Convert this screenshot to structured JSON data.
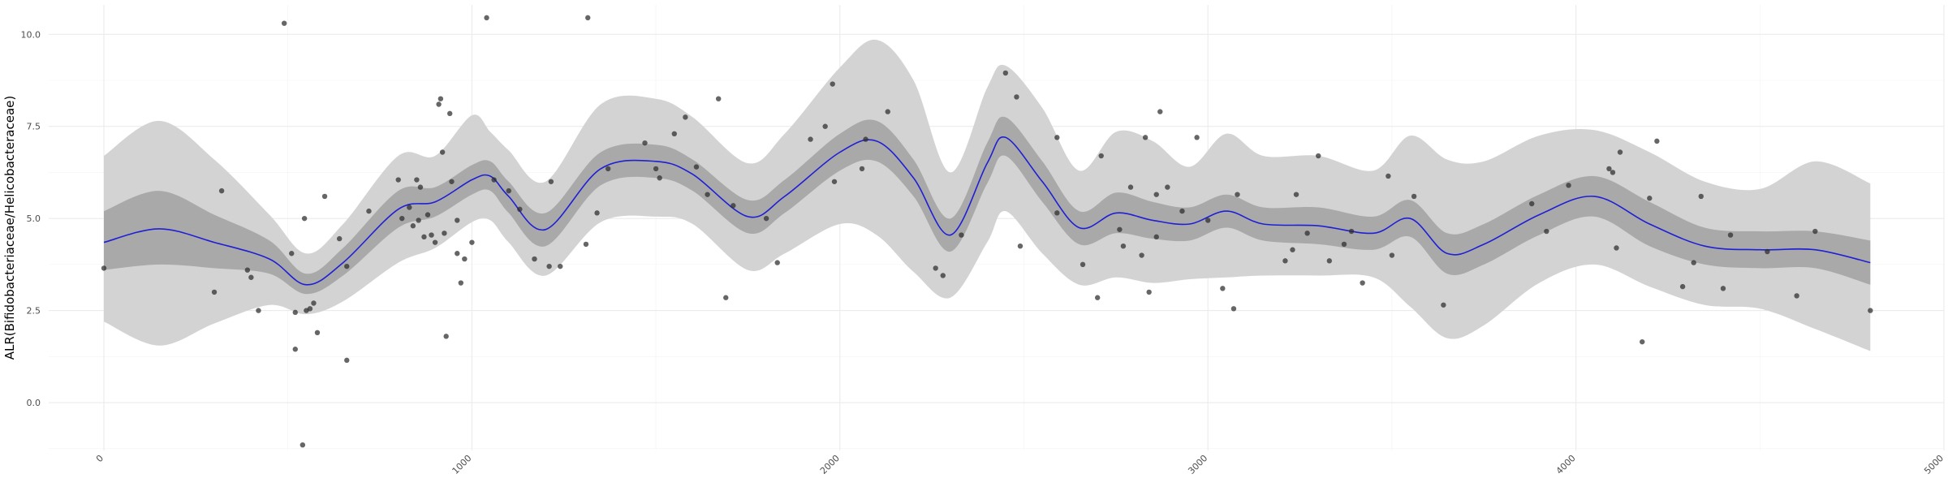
{
  "chart_data": {
    "type": "line",
    "title": "",
    "xlabel": "",
    "ylabel": "ALR(Bifidobacteriaceae/Helicobacteraceae)",
    "xlim": [
      -150,
      5000
    ],
    "ylim": [
      -1.3,
      10.8
    ],
    "x_ticks": [
      0,
      1000,
      2000,
      3000,
      4000,
      5000
    ],
    "x_tick_labels": [
      "0",
      "1000",
      "2000",
      "3000",
      "4000",
      "5000"
    ],
    "y_ticks": [
      0.0,
      2.5,
      5.0,
      7.5,
      10.0
    ],
    "y_tick_labels": [
      "0.0",
      "2.5",
      "5.0",
      "7.5",
      "10.0"
    ],
    "grid": true,
    "legend": "none",
    "colors": {
      "line": "#1f1fd6",
      "inner_band": "#a9a9a9",
      "outer_band": "#d3d3d3",
      "points": "#2b2b2b"
    },
    "smooth": {
      "x": [
        0,
        150,
        300,
        450,
        550,
        650,
        800,
        900,
        1000,
        1050,
        1100,
        1200,
        1350,
        1500,
        1600,
        1750,
        1850,
        2000,
        2100,
        2200,
        2300,
        2400,
        2450,
        2550,
        2650,
        2750,
        2850,
        2950,
        3050,
        3150,
        3300,
        3450,
        3550,
        3650,
        3750,
        3900,
        4050,
        4200,
        4350,
        4500,
        4650,
        4800
      ],
      "fit": [
        4.35,
        4.72,
        4.35,
        3.9,
        3.2,
        3.8,
        5.25,
        5.45,
        6.05,
        6.15,
        5.6,
        4.7,
        6.35,
        6.55,
        6.2,
        5.05,
        5.6,
        6.8,
        7.1,
        6.1,
        4.55,
        6.5,
        7.2,
        6.0,
        4.75,
        5.15,
        4.95,
        4.85,
        5.2,
        4.85,
        4.8,
        4.6,
        5.0,
        4.05,
        4.3,
        5.1,
        5.6,
        4.85,
        4.25,
        4.15,
        4.15,
        3.8
      ],
      "inner_lower": [
        3.6,
        3.75,
        3.65,
        3.5,
        2.95,
        3.45,
        4.75,
        5.05,
        5.65,
        5.75,
        5.15,
        4.25,
        5.9,
        6.1,
        5.75,
        4.6,
        5.15,
        6.3,
        6.55,
        5.6,
        4.1,
        5.95,
        6.7,
        5.45,
        4.3,
        4.6,
        4.45,
        4.4,
        4.75,
        4.4,
        4.3,
        4.15,
        4.5,
        3.5,
        3.75,
        4.55,
        5.05,
        4.25,
        3.75,
        3.65,
        3.65,
        3.2
      ],
      "inner_upper": [
        5.2,
        5.75,
        5.1,
        4.4,
        3.5,
        4.2,
        5.75,
        5.85,
        6.45,
        6.55,
        6.0,
        5.15,
        6.8,
        7.0,
        6.6,
        5.5,
        6.05,
        7.3,
        7.65,
        6.6,
        5.0,
        7.05,
        7.75,
        6.55,
        5.2,
        5.7,
        5.45,
        5.3,
        5.65,
        5.3,
        5.3,
        5.05,
        5.5,
        4.6,
        4.85,
        5.65,
        6.15,
        5.45,
        4.75,
        4.65,
        4.65,
        4.4
      ],
      "outer_lower": [
        2.2,
        1.55,
        2.15,
        2.65,
        2.4,
        2.75,
        3.8,
        4.2,
        4.9,
        4.95,
        4.35,
        3.45,
        4.9,
        5.05,
        4.85,
        3.6,
        4.05,
        4.85,
        4.55,
        3.55,
        2.85,
        4.35,
        5.2,
        4.05,
        3.2,
        3.4,
        3.25,
        3.35,
        3.4,
        3.45,
        3.45,
        3.4,
        2.6,
        1.75,
        2.1,
        3.25,
        3.75,
        3.15,
        2.65,
        2.55,
        2.0,
        1.4
      ],
      "outer_upper": [
        6.7,
        7.65,
        6.6,
        5.1,
        4.05,
        4.85,
        6.7,
        6.7,
        7.8,
        7.35,
        6.85,
        6.0,
        8.1,
        8.25,
        7.75,
        6.5,
        7.3,
        9.1,
        9.85,
        8.75,
        6.25,
        8.55,
        9.15,
        8.0,
        6.3,
        7.35,
        7.1,
        6.4,
        7.3,
        6.7,
        6.7,
        6.3,
        7.25,
        6.6,
        6.55,
        7.25,
        7.4,
        6.8,
        6.0,
        5.8,
        6.55,
        5.95
      ]
    },
    "points": [
      [
        0,
        3.65
      ],
      [
        300,
        3.0
      ],
      [
        320,
        5.75
      ],
      [
        390,
        3.6
      ],
      [
        400,
        3.4
      ],
      [
        420,
        2.5
      ],
      [
        490,
        10.3
      ],
      [
        510,
        4.05
      ],
      [
        520,
        1.45
      ],
      [
        520,
        2.45
      ],
      [
        540,
        -1.15
      ],
      [
        545,
        5.0
      ],
      [
        550,
        2.5
      ],
      [
        560,
        2.55
      ],
      [
        570,
        2.7
      ],
      [
        580,
        1.9
      ],
      [
        600,
        5.6
      ],
      [
        640,
        4.45
      ],
      [
        660,
        1.15
      ],
      [
        660,
        3.7
      ],
      [
        720,
        5.2
      ],
      [
        800,
        6.05
      ],
      [
        810,
        5.0
      ],
      [
        830,
        5.3
      ],
      [
        840,
        4.8
      ],
      [
        850,
        6.05
      ],
      [
        855,
        4.95
      ],
      [
        860,
        5.85
      ],
      [
        870,
        4.5
      ],
      [
        880,
        5.1
      ],
      [
        890,
        4.55
      ],
      [
        900,
        4.35
      ],
      [
        910,
        8.1
      ],
      [
        915,
        8.25
      ],
      [
        920,
        6.8
      ],
      [
        925,
        4.6
      ],
      [
        930,
        1.8
      ],
      [
        940,
        7.85
      ],
      [
        945,
        6.0
      ],
      [
        960,
        4.95
      ],
      [
        960,
        4.05
      ],
      [
        970,
        3.25
      ],
      [
        980,
        3.9
      ],
      [
        1000,
        4.35
      ],
      [
        1040,
        10.45
      ],
      [
        1060,
        6.05
      ],
      [
        1100,
        5.75
      ],
      [
        1130,
        5.25
      ],
      [
        1170,
        3.9
      ],
      [
        1210,
        3.7
      ],
      [
        1215,
        6.0
      ],
      [
        1240,
        3.7
      ],
      [
        1310,
        4.3
      ],
      [
        1340,
        5.15
      ],
      [
        1315,
        10.45
      ],
      [
        1370,
        6.35
      ],
      [
        1470,
        7.05
      ],
      [
        1500,
        6.35
      ],
      [
        1510,
        6.1
      ],
      [
        1550,
        7.3
      ],
      [
        1580,
        7.75
      ],
      [
        1610,
        6.4
      ],
      [
        1640,
        5.65
      ],
      [
        1670,
        8.25
      ],
      [
        1690,
        2.85
      ],
      [
        1710,
        5.35
      ],
      [
        1800,
        5.0
      ],
      [
        1830,
        3.8
      ],
      [
        1920,
        7.15
      ],
      [
        1960,
        7.5
      ],
      [
        1980,
        8.65
      ],
      [
        1985,
        6.0
      ],
      [
        2060,
        6.35
      ],
      [
        2070,
        7.15
      ],
      [
        2130,
        7.9
      ],
      [
        2260,
        3.65
      ],
      [
        2280,
        3.45
      ],
      [
        2330,
        4.55
      ],
      [
        2450,
        8.95
      ],
      [
        2480,
        8.3
      ],
      [
        2490,
        4.25
      ],
      [
        2590,
        5.15
      ],
      [
        2590,
        7.2
      ],
      [
        2660,
        3.75
      ],
      [
        2700,
        2.85
      ],
      [
        2710,
        6.7
      ],
      [
        2760,
        4.7
      ],
      [
        2770,
        4.25
      ],
      [
        2790,
        5.85
      ],
      [
        2820,
        4.0
      ],
      [
        2830,
        7.2
      ],
      [
        2840,
        3.0
      ],
      [
        2860,
        4.5
      ],
      [
        2860,
        5.65
      ],
      [
        2870,
        7.9
      ],
      [
        2890,
        5.85
      ],
      [
        2930,
        5.2
      ],
      [
        2970,
        7.2
      ],
      [
        3000,
        4.95
      ],
      [
        3040,
        3.1
      ],
      [
        3070,
        2.55
      ],
      [
        3080,
        5.65
      ],
      [
        3210,
        3.85
      ],
      [
        3230,
        4.15
      ],
      [
        3240,
        5.65
      ],
      [
        3270,
        4.6
      ],
      [
        3300,
        6.7
      ],
      [
        3330,
        3.85
      ],
      [
        3370,
        4.3
      ],
      [
        3390,
        4.65
      ],
      [
        3420,
        3.25
      ],
      [
        3490,
        6.15
      ],
      [
        3500,
        4.0
      ],
      [
        3560,
        5.6
      ],
      [
        3640,
        2.65
      ],
      [
        3880,
        5.4
      ],
      [
        3920,
        4.65
      ],
      [
        3980,
        5.9
      ],
      [
        4090,
        6.35
      ],
      [
        4100,
        6.25
      ],
      [
        4110,
        4.2
      ],
      [
        4120,
        6.8
      ],
      [
        4180,
        1.65
      ],
      [
        4200,
        5.55
      ],
      [
        4220,
        7.1
      ],
      [
        4290,
        3.15
      ],
      [
        4320,
        3.8
      ],
      [
        4340,
        5.6
      ],
      [
        4400,
        3.1
      ],
      [
        4420,
        4.55
      ],
      [
        4520,
        4.1
      ],
      [
        4600,
        2.9
      ],
      [
        4650,
        4.65
      ],
      [
        4800,
        2.5
      ]
    ]
  }
}
